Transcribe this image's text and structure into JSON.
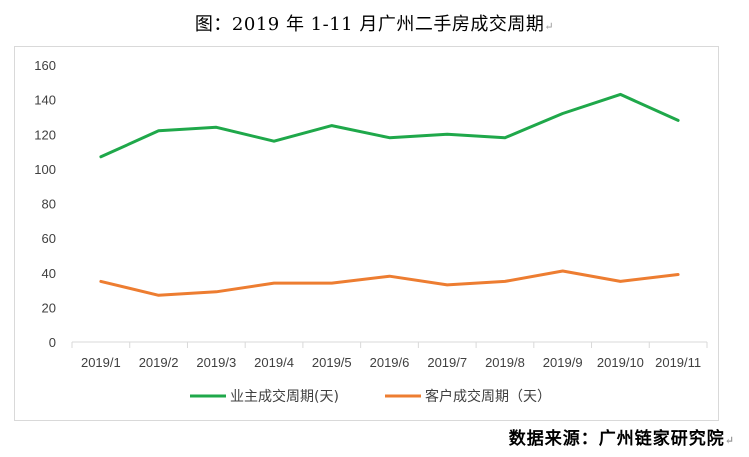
{
  "title": "图：2019 年 1-11 月广州二手房成交周期",
  "return_mark": "↵",
  "source": "数据来源：广州链家研究院",
  "chart_data": {
    "type": "line",
    "title": "图：2019 年 1-11 月广州二手房成交周期",
    "xlabel": "",
    "ylabel": "",
    "categories": [
      "2019/1",
      "2019/2",
      "2019/3",
      "2019/4",
      "2019/5",
      "2019/6",
      "2019/7",
      "2019/8",
      "2019/9",
      "2019/10",
      "2019/11"
    ],
    "ylim": [
      0,
      160
    ],
    "yticks": [
      0,
      20,
      40,
      60,
      80,
      100,
      120,
      140,
      160
    ],
    "grid": false,
    "legend_position": "bottom",
    "series": [
      {
        "name": "业主成交周期(天)",
        "color": "#1fa84a",
        "values": [
          107,
          122,
          124,
          116,
          125,
          118,
          120,
          118,
          132,
          143,
          128
        ]
      },
      {
        "name": "客户成交周期（天）",
        "color": "#ed7d31",
        "values": [
          35,
          27,
          29,
          34,
          34,
          38,
          33,
          35,
          41,
          35,
          39
        ]
      }
    ]
  }
}
